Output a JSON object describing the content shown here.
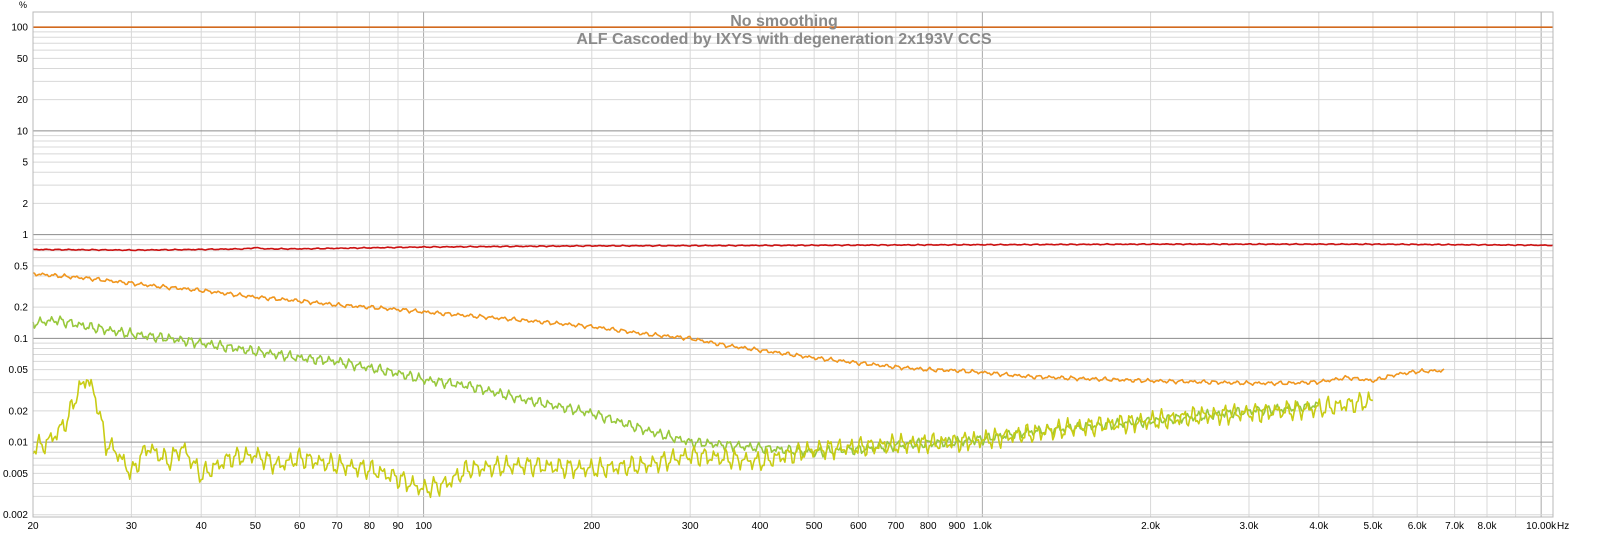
{
  "chart_data": {
    "type": "line",
    "title": "No smoothing",
    "subtitle": "ALF Cascoded by IXYS with degeneration 2x193V CCS",
    "y_unit": "%",
    "x_unit": "Hz",
    "x_scale": "log",
    "y_scale": "log",
    "xlim": [
      20,
      10500
    ],
    "ylim": [
      0.0019,
      140
    ],
    "grid": true,
    "legend": "none",
    "x_ticks": [
      {
        "v": 20,
        "label": "20"
      },
      {
        "v": 30,
        "label": "30"
      },
      {
        "v": 40,
        "label": "40"
      },
      {
        "v": 50,
        "label": "50"
      },
      {
        "v": 60,
        "label": "60"
      },
      {
        "v": 70,
        "label": "70"
      },
      {
        "v": 80,
        "label": "80"
      },
      {
        "v": 90,
        "label": "90"
      },
      {
        "v": 100,
        "label": "100"
      },
      {
        "v": 200,
        "label": "200"
      },
      {
        "v": 300,
        "label": "300"
      },
      {
        "v": 400,
        "label": "400"
      },
      {
        "v": 500,
        "label": "500"
      },
      {
        "v": 600,
        "label": "600"
      },
      {
        "v": 700,
        "label": "700"
      },
      {
        "v": 800,
        "label": "800"
      },
      {
        "v": 900,
        "label": "900"
      },
      {
        "v": 1000,
        "label": "1.0k"
      },
      {
        "v": 2000,
        "label": "2.0k"
      },
      {
        "v": 3000,
        "label": "3.0k"
      },
      {
        "v": 4000,
        "label": "4.0k"
      },
      {
        "v": 5000,
        "label": "5.0k"
      },
      {
        "v": 6000,
        "label": "6.0k"
      },
      {
        "v": 7000,
        "label": "7.0k"
      },
      {
        "v": 8000,
        "label": "8.0k"
      },
      {
        "v": 10000,
        "label": "10.00k"
      }
    ],
    "y_ticks": [
      {
        "v": 100,
        "label": "100"
      },
      {
        "v": 50,
        "label": "50"
      },
      {
        "v": 20,
        "label": "20"
      },
      {
        "v": 10,
        "label": "10"
      },
      {
        "v": 5,
        "label": "5"
      },
      {
        "v": 2,
        "label": "2"
      },
      {
        "v": 1,
        "label": "1"
      },
      {
        "v": 0.5,
        "label": "0.5"
      },
      {
        "v": 0.2,
        "label": "0.2"
      },
      {
        "v": 0.1,
        "label": "0.1"
      },
      {
        "v": 0.05,
        "label": "0.05"
      },
      {
        "v": 0.02,
        "label": "0.02"
      },
      {
        "v": 0.01,
        "label": "0.01"
      },
      {
        "v": 0.005,
        "label": "0.005"
      },
      {
        "v": 0.002,
        "label": "0.002"
      }
    ],
    "series": [
      {
        "color": "#d2691e",
        "x": [
          20,
          10500
        ],
        "y": [
          100,
          100
        ]
      },
      {
        "color": "#cc1111",
        "x": [
          20,
          30,
          40,
          48,
          50,
          52,
          60,
          100,
          200,
          500,
          1000,
          2000,
          3000,
          5000,
          10500
        ],
        "y": [
          0.72,
          0.71,
          0.72,
          0.73,
          0.75,
          0.73,
          0.73,
          0.76,
          0.78,
          0.79,
          0.8,
          0.81,
          0.81,
          0.81,
          0.79
        ]
      },
      {
        "color": "#f0961e",
        "x": [
          20,
          25,
          30,
          33,
          40,
          50,
          60,
          70,
          80,
          90,
          100,
          150,
          200,
          250,
          300,
          350,
          400,
          500,
          600,
          700,
          800,
          900,
          1000,
          1200,
          1500,
          2000,
          2500,
          3000,
          3500,
          4000,
          4500,
          5000,
          5500,
          6000,
          6700
        ],
        "y": [
          0.42,
          0.38,
          0.34,
          0.32,
          0.29,
          0.25,
          0.23,
          0.21,
          0.2,
          0.19,
          0.18,
          0.15,
          0.13,
          0.11,
          0.1,
          0.085,
          0.077,
          0.065,
          0.058,
          0.053,
          0.05,
          0.049,
          0.047,
          0.043,
          0.041,
          0.039,
          0.038,
          0.037,
          0.037,
          0.038,
          0.042,
          0.039,
          0.045,
          0.048,
          0.049
        ]
      },
      {
        "color": "#98c83c",
        "x": [
          20,
          22,
          25,
          30,
          35,
          40,
          50,
          60,
          70,
          80,
          90,
          100,
          120,
          150,
          200,
          250,
          300,
          400,
          500,
          600,
          700,
          800,
          900,
          1000,
          1200,
          1500,
          2000,
          2500,
          3000,
          3500,
          4000
        ],
        "y": [
          0.14,
          0.15,
          0.13,
          0.11,
          0.1,
          0.09,
          0.075,
          0.065,
          0.06,
          0.052,
          0.046,
          0.04,
          0.035,
          0.026,
          0.019,
          0.013,
          0.01,
          0.0088,
          0.008,
          0.0085,
          0.0093,
          0.0098,
          0.01,
          0.0107,
          0.0125,
          0.014,
          0.016,
          0.018,
          0.02,
          0.021,
          0.023
        ]
      },
      {
        "color": "#c8cc14",
        "x": [
          20,
          21,
          22,
          23,
          24,
          25,
          26,
          27,
          28,
          30,
          32,
          35,
          37,
          40,
          45,
          50,
          55,
          60,
          70,
          80,
          90,
          100,
          110,
          120,
          150,
          200,
          250,
          300,
          400,
          500,
          600,
          700,
          800,
          900,
          1000,
          1200,
          1500,
          2000,
          2500,
          3000,
          4000,
          5000
        ],
        "y": [
          0.009,
          0.0095,
          0.012,
          0.016,
          0.03,
          0.042,
          0.025,
          0.0095,
          0.0085,
          0.005,
          0.009,
          0.0065,
          0.009,
          0.0048,
          0.007,
          0.0075,
          0.006,
          0.007,
          0.006,
          0.0055,
          0.0045,
          0.0035,
          0.004,
          0.0055,
          0.006,
          0.0055,
          0.006,
          0.0075,
          0.0065,
          0.0085,
          0.009,
          0.0095,
          0.0098,
          0.01,
          0.0105,
          0.012,
          0.014,
          0.016,
          0.018,
          0.019,
          0.021,
          0.025
        ]
      }
    ]
  }
}
